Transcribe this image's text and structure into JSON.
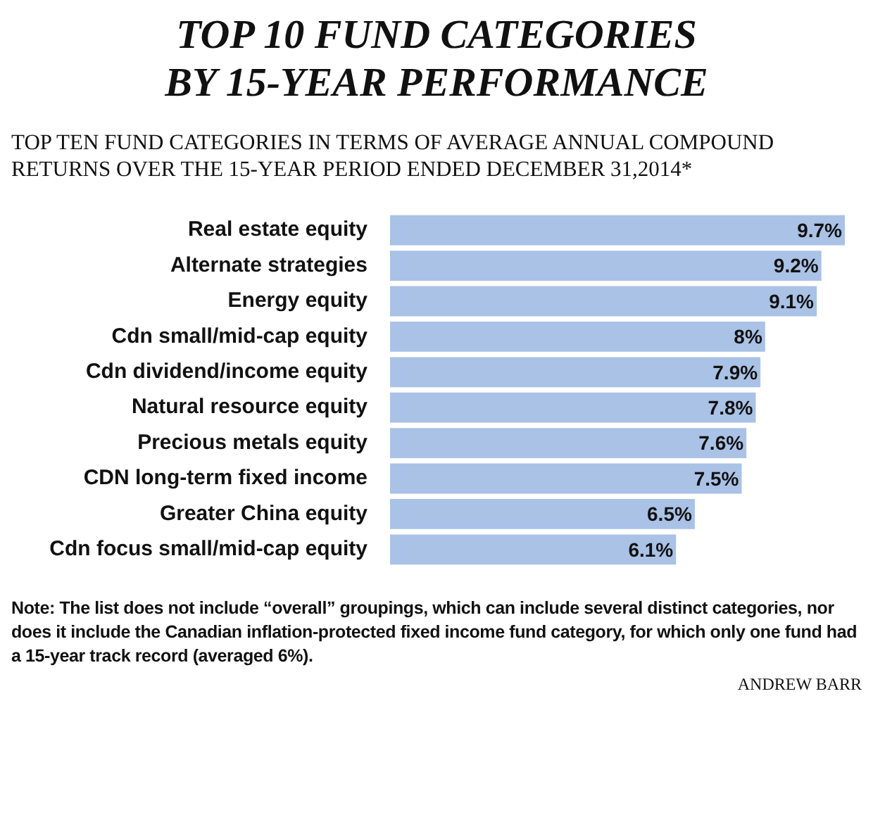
{
  "chart_data": {
    "type": "bar",
    "orientation": "horizontal",
    "title": "TOP 10 FUND CATEGORIES\nBY 15-YEAR PERFORMANCE",
    "subtitle": "TOP TEN FUND CATEGORIES IN TERMS OF AVERAGE ANNUAL COMPOUND RETURNS OVER THE 15-YEAR PERIOD ENDED DECEMBER 31,2014*",
    "categories": [
      "Real estate equity",
      "Alternate strategies",
      "Energy equity",
      "Cdn small/mid-cap equity",
      "Cdn dividend/income equity",
      "Natural resource equity",
      "Precious metals equity",
      "CDN long-term fixed income",
      "Greater China equity",
      "Cdn focus small/mid-cap equity"
    ],
    "values": [
      9.7,
      9.2,
      9.1,
      8,
      7.9,
      7.8,
      7.6,
      7.5,
      6.5,
      6.1
    ],
    "value_labels": [
      "9.7%",
      "9.2%",
      "9.1%",
      "8%",
      "7.9%",
      "7.8%",
      "7.6%",
      "7.5%",
      "6.5%",
      "6.1%"
    ],
    "color": "#a9c2e6",
    "annotations": [
      "Note: The list does not include “overall” groupings, which can include several distinct categories, nor does it include the Canadian inflation-protected fixed income fund category, for which only one fund had a 15-year track record (averaged 6%).",
      "ANDREW BARR"
    ]
  }
}
